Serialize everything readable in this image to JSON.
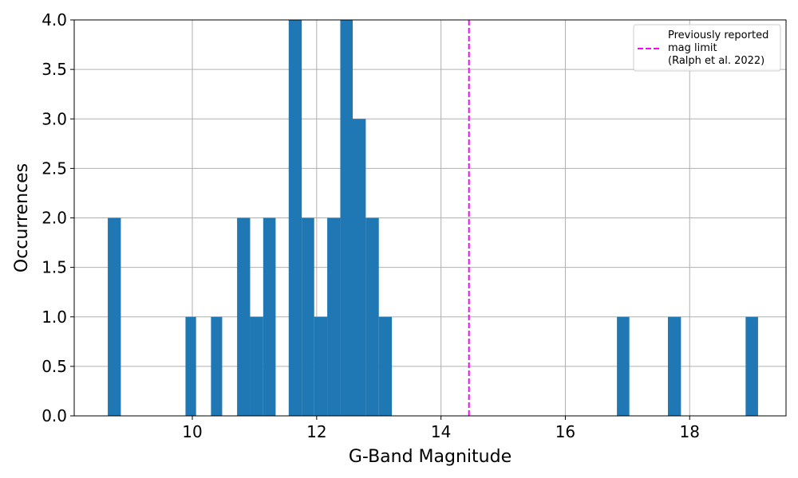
{
  "chart_data": {
    "type": "bar",
    "subtype": "histogram",
    "title": "",
    "xlabel": "G-Band Magnitude",
    "ylabel": "Occurrences",
    "xlim": [
      8.1,
      19.55
    ],
    "ylim": [
      0,
      4
    ],
    "x_ticks": [
      10,
      12,
      14,
      16,
      18
    ],
    "x_tick_labels": [
      "10",
      "12",
      "14",
      "16",
      "18"
    ],
    "y_ticks": [
      0,
      0.5,
      1,
      1.5,
      2,
      2.5,
      3,
      3.5,
      4
    ],
    "y_tick_labels": [
      "0.0",
      "0.5",
      "1.0",
      "1.5",
      "2.0",
      "2.5",
      "3.0",
      "3.5",
      "4.0"
    ],
    "grid": true,
    "bar_color": "#1f77b4",
    "bins": [
      {
        "x0": 8.64,
        "x1": 8.85,
        "count": 2
      },
      {
        "x0": 9.89,
        "x1": 10.06,
        "count": 1
      },
      {
        "x0": 10.3,
        "x1": 10.48,
        "count": 1
      },
      {
        "x0": 10.72,
        "x1": 10.93,
        "count": 2
      },
      {
        "x0": 10.93,
        "x1": 11.14,
        "count": 1
      },
      {
        "x0": 11.14,
        "x1": 11.34,
        "count": 2
      },
      {
        "x0": 11.55,
        "x1": 11.76,
        "count": 4
      },
      {
        "x0": 11.76,
        "x1": 11.96,
        "count": 2
      },
      {
        "x0": 11.96,
        "x1": 12.17,
        "count": 1
      },
      {
        "x0": 12.17,
        "x1": 12.38,
        "count": 2
      },
      {
        "x0": 12.38,
        "x1": 12.58,
        "count": 4
      },
      {
        "x0": 12.58,
        "x1": 12.79,
        "count": 3
      },
      {
        "x0": 12.79,
        "x1": 13.0,
        "count": 2
      },
      {
        "x0": 13.0,
        "x1": 13.21,
        "count": 1
      },
      {
        "x0": 16.83,
        "x1": 17.03,
        "count": 1
      },
      {
        "x0": 17.65,
        "x1": 17.86,
        "count": 1
      },
      {
        "x0": 18.9,
        "x1": 19.1,
        "count": 1
      }
    ],
    "reference_line": {
      "x": 14.45,
      "color": "#ff00ff",
      "style": "dashed",
      "label": "Previously reported mag limit (Ralph et al. 2022)"
    },
    "legend": {
      "position": "top-right",
      "lines": [
        "Previously reported",
        "mag limit",
        "(Ralph et al. 2022)"
      ]
    }
  }
}
